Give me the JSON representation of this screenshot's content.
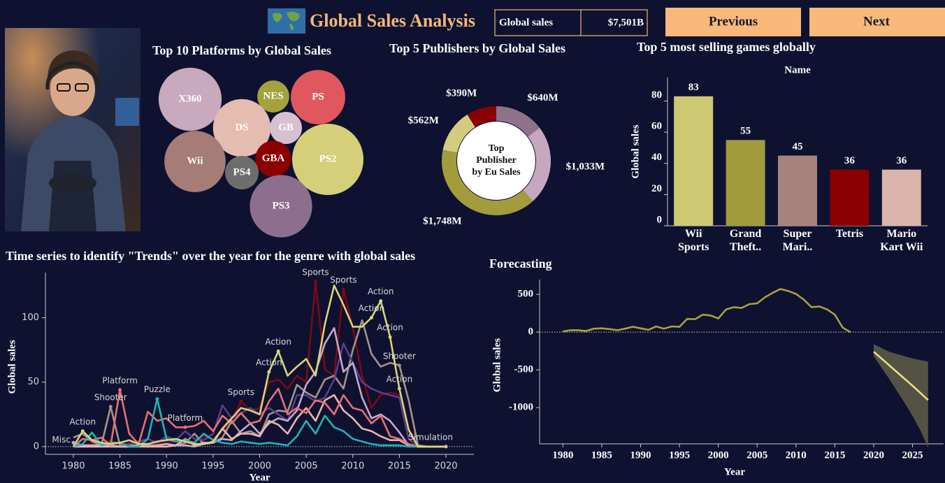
{
  "header": {
    "title": "Global Sales Analysis",
    "kpi_label": "Global sales",
    "kpi_value": "$7,501B",
    "buttons": [
      "Previous",
      "Next"
    ]
  },
  "chart_data": [
    {
      "type": "bubble",
      "title": "Top 10 Platforms by Global Sales",
      "categories": [
        "X360",
        "NES",
        "PS",
        "DS",
        "GB",
        "Wii",
        "GBA",
        "PS2",
        "PS4",
        "PS3"
      ],
      "values": [
        980,
        251,
        731,
        822,
        255,
        927,
        318,
        1256,
        278,
        958
      ],
      "colors": [
        "#c9a9bd",
        "#a3a23e",
        "#e1575e",
        "#e4bcb0",
        "#d7c0d2",
        "#a67d76",
        "#8b0000",
        "#d4cf78",
        "#6d6d6d",
        "#8e6e8e"
      ]
    },
    {
      "type": "donut",
      "title": "Top 5 Publishers by Global Sales",
      "center_label": "Top Publisher by Eu Sales",
      "values": [
        640,
        1033,
        1748,
        562,
        390
      ],
      "value_labels": [
        "$640M",
        "$1,033M",
        "$1,748M",
        "$562M",
        "$390M"
      ],
      "colors": [
        "#8f718b",
        "#c7a7bf",
        "#a39c3c",
        "#d3cc80",
        "#8b0000"
      ]
    },
    {
      "type": "bar",
      "title": "Top 5 most selling games globally",
      "x_label": "Name",
      "y_label": "Global sales",
      "categories": [
        "Wii Sports",
        "Grand Theft..",
        "Super Mari..",
        "Tetris",
        "Mario Kart Wii"
      ],
      "values": [
        83,
        55,
        45,
        36,
        36
      ],
      "colors": [
        "#cfc872",
        "#a09a3c",
        "#a6837b",
        "#8b0000",
        "#dbb4ac"
      ],
      "ylim": [
        0,
        95
      ],
      "yticks": [
        0,
        20,
        40,
        60,
        80
      ]
    },
    {
      "type": "line",
      "title": "Time series to identify \"Trends\" over the year for the genre with global sales",
      "x_label": "Year",
      "y_label": "Global sales",
      "x": [
        1980,
        1981,
        1982,
        1983,
        1984,
        1985,
        1986,
        1987,
        1988,
        1989,
        1990,
        1991,
        1992,
        1993,
        1994,
        1995,
        1996,
        1997,
        1998,
        1999,
        2000,
        2001,
        2002,
        2003,
        2004,
        2005,
        2006,
        2007,
        2008,
        2009,
        2010,
        2011,
        2012,
        2013,
        2014,
        2015,
        2016,
        2017,
        2018,
        2019,
        2020
      ],
      "series": [
        {
          "name": "Sports",
          "color": "#7a0a14",
          "values": [
            1,
            1,
            2,
            1,
            5,
            1,
            3,
            4,
            2,
            2,
            3,
            4,
            2,
            4,
            8,
            6,
            12,
            20,
            35,
            28,
            30,
            50,
            52,
            45,
            55,
            50,
            128,
            60,
            55,
            122,
            92,
            55,
            30,
            40,
            42,
            40,
            14,
            0,
            0,
            0,
            0
          ]
        },
        {
          "name": "Shooter",
          "color": "#a8928e",
          "values": [
            7,
            10,
            4,
            1,
            31,
            1,
            1,
            1,
            1,
            1,
            2,
            1,
            3,
            10,
            2,
            3,
            7,
            20,
            10,
            12,
            8,
            25,
            28,
            27,
            48,
            42,
            38,
            52,
            55,
            45,
            75,
            98,
            72,
            62,
            65,
            63,
            36,
            1,
            0,
            0,
            0
          ]
        },
        {
          "color": "#5b3d8c",
          "values": [
            0,
            0,
            0,
            0,
            0,
            0,
            2,
            4,
            6,
            3,
            8,
            5,
            12,
            6,
            5,
            10,
            32,
            22,
            26,
            30,
            25,
            30,
            25,
            20,
            40,
            40,
            35,
            38,
            52,
            80,
            65,
            50,
            45,
            42,
            40,
            38,
            6,
            0,
            0,
            0,
            0
          ]
        },
        {
          "name": "Misc",
          "color": "#c9a8c9",
          "values": [
            3,
            1,
            1,
            1,
            1,
            0,
            0,
            1,
            0,
            1,
            2,
            1,
            1,
            0,
            2,
            3,
            6,
            5,
            12,
            18,
            10,
            18,
            22,
            20,
            28,
            48,
            58,
            80,
            92,
            58,
            65,
            38,
            22,
            25,
            20,
            11,
            1,
            0,
            0,
            0,
            0
          ]
        },
        {
          "name": "Simulation",
          "color": "#e9b7b0",
          "values": [
            0,
            0,
            0,
            0,
            0,
            0,
            0,
            0,
            0,
            0,
            0,
            1,
            6,
            1,
            3,
            3,
            14,
            6,
            10,
            10,
            8,
            20,
            17,
            10,
            22,
            30,
            20,
            36,
            40,
            28,
            22,
            14,
            12,
            8,
            5,
            5,
            1,
            0,
            0,
            0,
            0
          ]
        },
        {
          "name": "Platform",
          "color": "#ea6f74",
          "values": [
            0,
            6,
            5,
            7,
            1,
            44,
            10,
            2,
            27,
            20,
            22,
            15,
            15,
            16,
            20,
            12,
            24,
            18,
            26,
            18,
            20,
            35,
            45,
            25,
            30,
            26,
            36,
            34,
            25,
            40,
            30,
            28,
            18,
            24,
            8,
            6,
            2,
            0,
            0,
            0,
            0
          ]
        },
        {
          "name": "Puzzle",
          "color": "#22b3b3",
          "values": [
            0,
            2,
            11,
            1,
            3,
            3,
            0,
            0,
            6,
            37,
            6,
            4,
            5,
            3,
            10,
            5,
            3,
            2,
            4,
            3,
            2,
            3,
            2,
            1,
            8,
            20,
            10,
            24,
            15,
            12,
            6,
            4,
            2,
            1,
            1,
            1,
            0,
            0,
            0,
            0,
            0
          ]
        },
        {
          "name": "Action",
          "color": "#d9d47a",
          "values": [
            0,
            12,
            5,
            3,
            2,
            3,
            5,
            2,
            2,
            4,
            5,
            6,
            4,
            2,
            2,
            4,
            14,
            22,
            30,
            28,
            25,
            58,
            74,
            55,
            62,
            68,
            55,
            95,
            125,
            110,
            93,
            93,
            100,
            113,
            85,
            45,
            13,
            0,
            0,
            0,
            0
          ]
        }
      ],
      "annotations": [
        {
          "text": "Misc",
          "x": 1980
        },
        {
          "text": "Action",
          "x": 1981
        },
        {
          "text": "Shooter",
          "x": 1984
        },
        {
          "text": "Platform",
          "x": 1985
        },
        {
          "text": "Puzzle",
          "x": 1989
        },
        {
          "text": "Platform",
          "x": 1992
        },
        {
          "text": "Sports",
          "x": 1998
        },
        {
          "text": "Action",
          "x": 2001
        },
        {
          "text": "Action",
          "x": 2002
        },
        {
          "text": "Sports",
          "x": 2006
        },
        {
          "text": "Sports",
          "x": 2009
        },
        {
          "text": "Action",
          "x": 2012
        },
        {
          "text": "Action",
          "x": 2013
        },
        {
          "text": "Action",
          "x": 2014
        },
        {
          "text": "Shooter",
          "x": 2015
        },
        {
          "text": "Action",
          "x": 2015
        },
        {
          "text": "Simulation",
          "x": 2020
        }
      ],
      "xlim": [
        1977,
        2023
      ],
      "xticks": [
        1980,
        1985,
        1990,
        1995,
        2000,
        2005,
        2010,
        2015,
        2020
      ],
      "ylim": [
        -6,
        135
      ],
      "yticks": [
        0,
        50,
        100
      ]
    },
    {
      "type": "line",
      "title": "Forecasting",
      "x_label": "Year",
      "y_label": "Global sales",
      "color": "#a8a23e",
      "x": [
        1980,
        1981,
        1982,
        1983,
        1984,
        1985,
        1986,
        1987,
        1988,
        1989,
        1990,
        1991,
        1992,
        1993,
        1994,
        1995,
        1996,
        1997,
        1998,
        1999,
        2000,
        2001,
        2002,
        2003,
        2004,
        2005,
        2006,
        2007,
        2008,
        2009,
        2010,
        2011,
        2012,
        2013,
        2014,
        2015,
        2016,
        2017
      ],
      "values": [
        8,
        25,
        25,
        15,
        45,
        50,
        40,
        25,
        45,
        70,
        50,
        30,
        75,
        45,
        75,
        70,
        175,
        170,
        230,
        220,
        180,
        300,
        330,
        320,
        370,
        380,
        460,
        520,
        570,
        545,
        505,
        430,
        330,
        340,
        300,
        230,
        60,
        0
      ],
      "forecast": {
        "color": "#e8e27e",
        "band_color": "#5b5a48",
        "x": [
          2020,
          2021,
          2022,
          2023,
          2024,
          2025,
          2026,
          2027
        ],
        "values": [
          -260,
          -350,
          -440,
          -530,
          -620,
          -710,
          -805,
          -900
        ],
        "lower": [
          -320,
          -470,
          -620,
          -780,
          -940,
          -1110,
          -1300,
          -1530
        ],
        "upper": [
          -160,
          -210,
          -260,
          -290,
          -320,
          -350,
          -370,
          -390
        ]
      },
      "xlim": [
        1977,
        2029
      ],
      "xticks": [
        1980,
        1985,
        1990,
        1995,
        2000,
        2005,
        2010,
        2015,
        2020,
        2025
      ],
      "ylim": [
        -1480,
        695
      ],
      "yticks": [
        -1000,
        -500,
        0,
        500
      ]
    }
  ]
}
